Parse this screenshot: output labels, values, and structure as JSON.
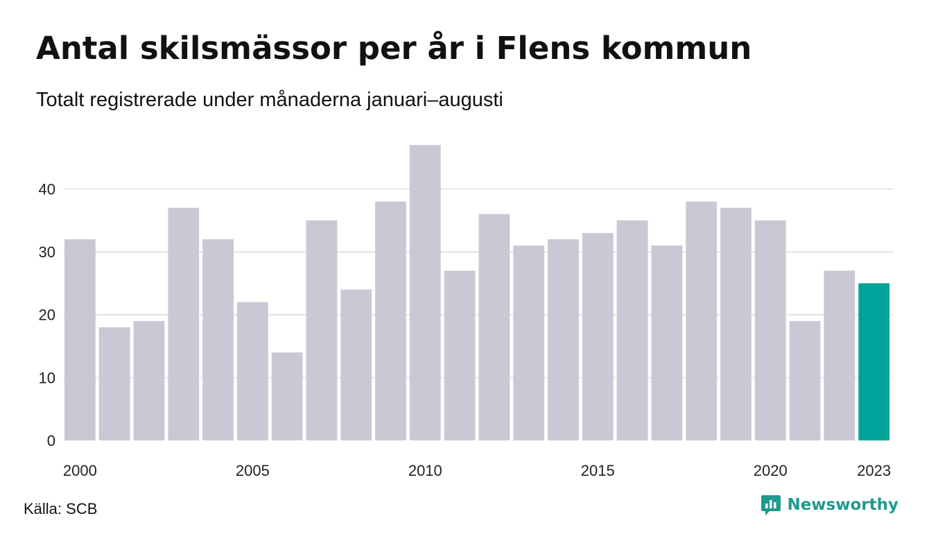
{
  "title": "Antal skilsmässor per år i Flens kommun",
  "subtitle": "Totalt registrerade under månaderna januari–augusti",
  "source": "Källa: SCB",
  "brand": "Newsworthy",
  "colors": {
    "bar": "#c9c8d4",
    "highlight": "#00a39a",
    "grid": "#e3e3e3",
    "brand": "#1e9b8e"
  },
  "chart_data": {
    "type": "bar",
    "title": "Antal skilsmässor per år i Flens kommun",
    "subtitle": "Totalt registrerade under månaderna januari–augusti",
    "xlabel": "",
    "ylabel": "",
    "categories": [
      2000,
      2001,
      2002,
      2003,
      2004,
      2005,
      2006,
      2007,
      2008,
      2009,
      2010,
      2011,
      2012,
      2013,
      2014,
      2015,
      2016,
      2017,
      2018,
      2019,
      2020,
      2021,
      2022,
      2023
    ],
    "values": [
      32,
      18,
      19,
      37,
      32,
      22,
      14,
      35,
      24,
      38,
      47,
      27,
      36,
      31,
      32,
      33,
      35,
      31,
      38,
      37,
      35,
      19,
      27,
      25
    ],
    "highlight": [
      2023
    ],
    "ylim": [
      0,
      47
    ],
    "yticks": [
      0,
      10,
      20,
      30,
      40
    ],
    "xtick_labels": [
      "2000",
      "2005",
      "2010",
      "2015",
      "2020",
      "2023"
    ],
    "grid": true,
    "legend": "none"
  }
}
